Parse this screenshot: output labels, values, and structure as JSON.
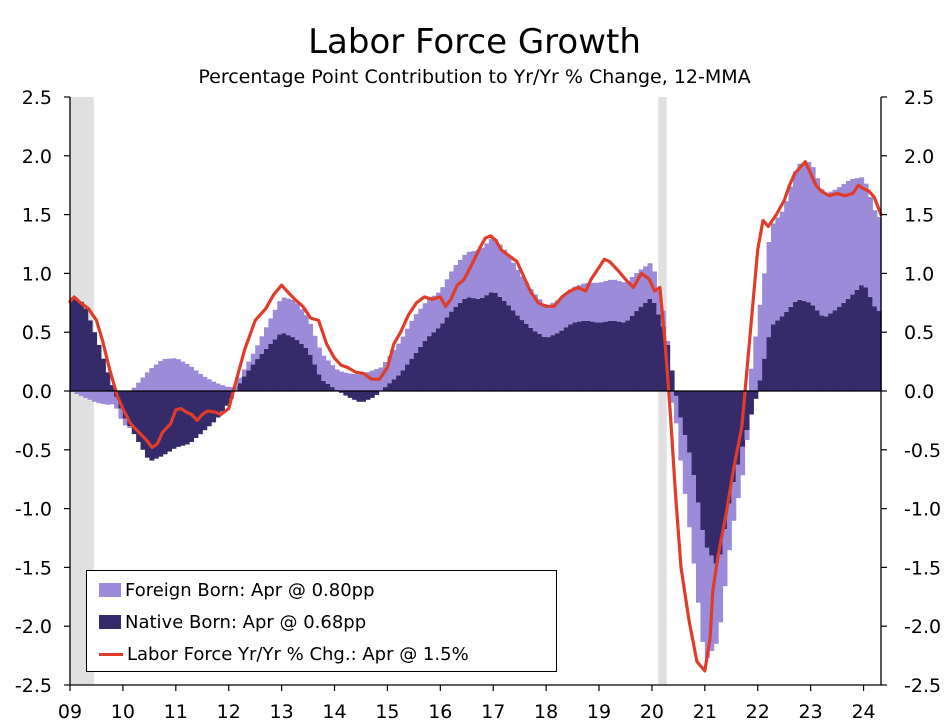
{
  "chart_data": {
    "type": "area",
    "title": "Labor Force Growth",
    "subtitle": "Percentage Point Contribution to Yr/Yr % Change, 12-MMA",
    "xlabel": "",
    "ylabel": "",
    "ylim": [
      -2.5,
      2.5
    ],
    "yticks": [
      "2.5",
      "2.0",
      "1.5",
      "1.0",
      "0.5",
      "0.0",
      "-0.5",
      "-1.0",
      "-1.5",
      "-2.0",
      "-2.5"
    ],
    "xticks": [
      "09",
      "10",
      "11",
      "12",
      "13",
      "14",
      "15",
      "16",
      "17",
      "18",
      "19",
      "20",
      "21",
      "22",
      "23",
      "24"
    ],
    "xlim": [
      2009.0,
      2024.33
    ],
    "grid": false,
    "legend_position": "bottom-left",
    "recessions": [
      [
        2009.0,
        2009.45
      ],
      [
        2020.12,
        2020.28
      ]
    ],
    "colors": {
      "foreign_born": "#9b8bd9",
      "native_born": "#352a6a",
      "labor_force": "#e03c2a",
      "recession": "#e0e0e0"
    },
    "series": [
      {
        "name": "Foreign Born: Apr @ 0.80pp",
        "kind": "stacked-bar",
        "x": [
          2009.0,
          2009.25,
          2009.5,
          2009.75,
          2010.0,
          2010.25,
          2010.5,
          2010.75,
          2011.0,
          2011.25,
          2011.5,
          2011.75,
          2012.0,
          2012.25,
          2012.5,
          2012.75,
          2013.0,
          2013.25,
          2013.5,
          2013.75,
          2014.0,
          2014.25,
          2014.5,
          2014.75,
          2015.0,
          2015.25,
          2015.5,
          2015.75,
          2016.0,
          2016.25,
          2016.5,
          2016.75,
          2017.0,
          2017.25,
          2017.5,
          2017.75,
          2018.0,
          2018.25,
          2018.5,
          2018.75,
          2019.0,
          2019.25,
          2019.5,
          2019.75,
          2020.0,
          2020.25,
          2020.5,
          2020.75,
          2021.0,
          2021.25,
          2021.5,
          2021.75,
          2022.0,
          2022.25,
          2022.5,
          2022.75,
          2023.0,
          2023.25,
          2023.5,
          2023.75,
          2024.0,
          2024.25
        ],
        "values": [
          0.0,
          -0.05,
          -0.1,
          -0.12,
          -0.08,
          0.05,
          0.18,
          0.27,
          0.28,
          0.22,
          0.13,
          0.07,
          0.03,
          0.05,
          0.1,
          0.2,
          0.3,
          0.32,
          0.27,
          0.22,
          0.18,
          0.15,
          0.14,
          0.18,
          0.22,
          0.28,
          0.33,
          0.32,
          0.3,
          0.35,
          0.38,
          0.42,
          0.46,
          0.43,
          0.38,
          0.32,
          0.27,
          0.28,
          0.3,
          0.32,
          0.34,
          0.35,
          0.34,
          0.32,
          0.3,
          0.1,
          -0.3,
          -0.7,
          -1.0,
          -0.62,
          -0.35,
          -0.22,
          0.6,
          0.85,
          0.9,
          1.15,
          1.2,
          1.05,
          1.02,
          1.0,
          0.9,
          0.8
        ]
      },
      {
        "name": "Native Born: Apr @ 0.68pp",
        "kind": "stacked-bar",
        "x": [
          2009.0,
          2009.25,
          2009.5,
          2009.75,
          2010.0,
          2010.25,
          2010.5,
          2010.75,
          2011.0,
          2011.25,
          2011.5,
          2011.75,
          2012.0,
          2012.25,
          2012.5,
          2012.75,
          2013.0,
          2013.25,
          2013.5,
          2013.75,
          2014.0,
          2014.25,
          2014.5,
          2014.75,
          2015.0,
          2015.25,
          2015.5,
          2015.75,
          2016.0,
          2016.25,
          2016.5,
          2016.75,
          2017.0,
          2017.25,
          2017.5,
          2017.75,
          2018.0,
          2018.25,
          2018.5,
          2018.75,
          2019.0,
          2019.25,
          2019.5,
          2019.75,
          2020.0,
          2020.25,
          2020.5,
          2020.75,
          2021.0,
          2021.25,
          2021.5,
          2021.75,
          2022.0,
          2022.25,
          2022.5,
          2022.75,
          2023.0,
          2023.25,
          2023.5,
          2023.75,
          2024.0,
          2024.25
        ],
        "values": [
          0.8,
          0.75,
          0.45,
          0.1,
          -0.2,
          -0.4,
          -0.6,
          -0.55,
          -0.48,
          -0.45,
          -0.35,
          -0.25,
          -0.1,
          0.1,
          0.25,
          0.38,
          0.5,
          0.45,
          0.35,
          0.1,
          0.02,
          -0.05,
          -0.1,
          -0.05,
          0.05,
          0.15,
          0.3,
          0.45,
          0.55,
          0.7,
          0.8,
          0.78,
          0.85,
          0.75,
          0.62,
          0.52,
          0.45,
          0.5,
          0.58,
          0.6,
          0.58,
          0.6,
          0.58,
          0.7,
          0.8,
          0.5,
          -0.15,
          -0.6,
          -1.3,
          -1.5,
          -0.85,
          -0.4,
          0.0,
          0.55,
          0.65,
          0.78,
          0.75,
          0.62,
          0.7,
          0.8,
          0.92,
          0.68
        ]
      },
      {
        "name": "Labor Force Yr/Yr % Chg.: Apr @ 1.5%",
        "kind": "line",
        "x": [
          2009.0,
          2009.08,
          2009.2,
          2009.35,
          2009.5,
          2009.62,
          2009.75,
          2009.9,
          2010.0,
          2010.15,
          2010.3,
          2010.45,
          2010.55,
          2010.65,
          2010.75,
          2010.9,
          2011.0,
          2011.1,
          2011.2,
          2011.3,
          2011.4,
          2011.5,
          2011.6,
          2011.75,
          2011.85,
          2012.0,
          2012.15,
          2012.3,
          2012.5,
          2012.7,
          2012.85,
          2013.0,
          2013.1,
          2013.25,
          2013.4,
          2013.55,
          2013.7,
          2013.85,
          2014.0,
          2014.12,
          2014.25,
          2014.4,
          2014.55,
          2014.7,
          2014.85,
          2015.0,
          2015.12,
          2015.25,
          2015.4,
          2015.55,
          2015.7,
          2015.85,
          2016.0,
          2016.1,
          2016.2,
          2016.32,
          2016.45,
          2016.6,
          2016.75,
          2016.85,
          2016.95,
          2017.05,
          2017.15,
          2017.3,
          2017.45,
          2017.55,
          2017.7,
          2017.85,
          2018.0,
          2018.15,
          2018.3,
          2018.45,
          2018.6,
          2018.75,
          2018.85,
          2019.0,
          2019.1,
          2019.2,
          2019.35,
          2019.5,
          2019.65,
          2019.8,
          2019.95,
          2020.05,
          2020.15,
          2020.25,
          2020.35,
          2020.45,
          2020.55,
          2020.7,
          2020.85,
          2021.0,
          2021.1,
          2021.15,
          2021.25,
          2021.4,
          2021.55,
          2021.7,
          2021.85,
          2022.0,
          2022.1,
          2022.2,
          2022.35,
          2022.5,
          2022.6,
          2022.7,
          2022.8,
          2022.9,
          2023.0,
          2023.1,
          2023.2,
          2023.35,
          2023.5,
          2023.65,
          2023.8,
          2023.9,
          2024.0,
          2024.1,
          2024.2,
          2024.33
        ],
        "values": [
          0.76,
          0.8,
          0.75,
          0.7,
          0.6,
          0.42,
          0.18,
          -0.05,
          -0.15,
          -0.28,
          -0.35,
          -0.42,
          -0.48,
          -0.45,
          -0.35,
          -0.28,
          -0.16,
          -0.15,
          -0.18,
          -0.2,
          -0.25,
          -0.2,
          -0.17,
          -0.18,
          -0.2,
          -0.15,
          0.1,
          0.35,
          0.6,
          0.7,
          0.82,
          0.9,
          0.85,
          0.78,
          0.72,
          0.62,
          0.6,
          0.4,
          0.28,
          0.22,
          0.2,
          0.16,
          0.15,
          0.1,
          0.1,
          0.2,
          0.4,
          0.5,
          0.65,
          0.75,
          0.8,
          0.78,
          0.8,
          0.72,
          0.78,
          0.9,
          0.95,
          1.08,
          1.22,
          1.3,
          1.32,
          1.28,
          1.2,
          1.15,
          1.1,
          1.0,
          0.85,
          0.75,
          0.72,
          0.72,
          0.8,
          0.85,
          0.88,
          0.85,
          0.95,
          1.05,
          1.12,
          1.1,
          1.03,
          0.95,
          0.88,
          1.0,
          0.95,
          0.85,
          0.88,
          0.4,
          -0.2,
          -0.9,
          -1.5,
          -1.95,
          -2.3,
          -2.38,
          -2.1,
          -1.7,
          -1.4,
          -1.05,
          -0.65,
          -0.3,
          0.45,
          1.2,
          1.45,
          1.4,
          1.5,
          1.62,
          1.75,
          1.85,
          1.9,
          1.95,
          1.85,
          1.75,
          1.7,
          1.66,
          1.68,
          1.66,
          1.68,
          1.75,
          1.72,
          1.7,
          1.65,
          1.5
        ]
      }
    ]
  }
}
